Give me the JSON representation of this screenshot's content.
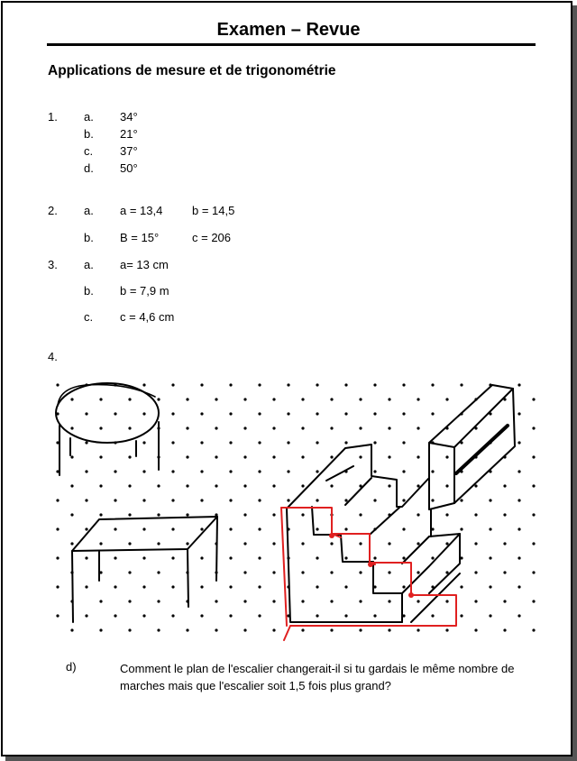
{
  "header": {
    "title": "Examen – Revue"
  },
  "section_title": "Applications de mesure et de trigonométrie",
  "q1": {
    "number": "1.",
    "items": [
      {
        "letter": "a.",
        "answer": "34°"
      },
      {
        "letter": "b.",
        "answer": "21°"
      },
      {
        "letter": "c.",
        "answer": "37°"
      },
      {
        "letter": "d.",
        "answer": "50°"
      }
    ]
  },
  "q2": {
    "number": "2.",
    "items": [
      {
        "letter": "a.",
        "answer1": "a = 13,4",
        "answer2": "b = 14,5"
      },
      {
        "letter": "b.",
        "answer1": "B = 15°",
        "answer2": "c = 206"
      }
    ]
  },
  "q3": {
    "number": "3.",
    "items": [
      {
        "letter": "a.",
        "answer": "a= 13 cm"
      },
      {
        "letter": "b.",
        "answer": "b = 7,9 m"
      },
      {
        "letter": "c.",
        "answer": "c = 4,6 cm"
      }
    ]
  },
  "q4": {
    "number": "4.",
    "sub_letter": "d)",
    "question": "Comment le plan de l'escalier changerait-il si tu gardais le même nombre de marches mais que l'escalier soit 1,5 fois plus grand?"
  },
  "colors": {
    "ink": "#000000",
    "plan": "#e02020",
    "frame_shadow": "#555555"
  }
}
